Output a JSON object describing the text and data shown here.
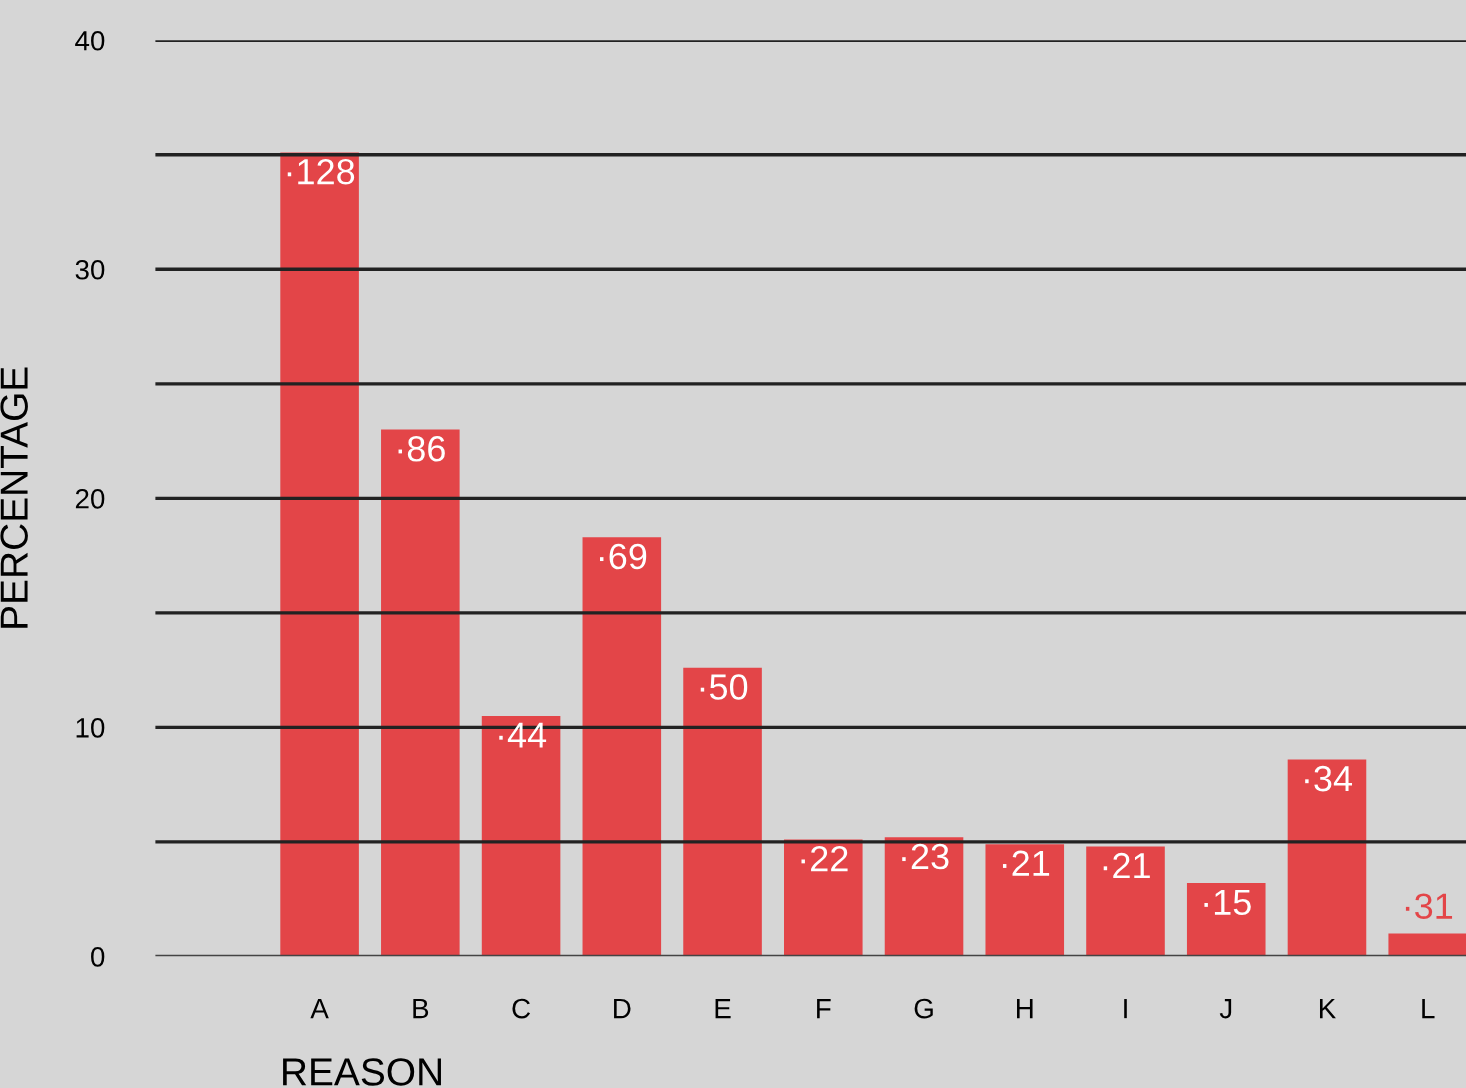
{
  "chart_data": {
    "type": "bar",
    "xlabel": "REASON",
    "ylabel": "PERCENTAGE",
    "categories": [
      "A",
      "B",
      "C",
      "D",
      "E",
      "F",
      "G",
      "H",
      "I",
      "J",
      "K",
      "L"
    ],
    "values": [
      35.1,
      23.0,
      10.5,
      18.3,
      12.6,
      5.1,
      5.2,
      4.9,
      4.8,
      3.2,
      8.6,
      1.0
    ],
    "annotations": [
      {
        "text": "·128",
        "x": "A",
        "y": 35.1
      },
      {
        "text": "·86",
        "x": "B",
        "y": 23.0
      },
      {
        "text": "·44",
        "x": "C",
        "y": 10.5
      },
      {
        "text": "·69",
        "x": "D",
        "y": 18.3
      },
      {
        "text": "·50",
        "x": "E",
        "y": 12.6
      },
      {
        "text": "·22",
        "x": "F",
        "y": 5.1
      },
      {
        "text": "·23",
        "x": "G",
        "y": 5.2
      },
      {
        "text": "·21",
        "x": "H",
        "y": 4.9
      },
      {
        "text": "·21",
        "x": "I",
        "y": 4.8
      },
      {
        "text": "·15",
        "x": "J",
        "y": 3.2
      },
      {
        "text": "·34",
        "x": "K",
        "y": 8.6
      },
      {
        "text": "·31",
        "x": "L",
        "y": 1.0
      }
    ],
    "color": "#e34548",
    "ylim": [
      0,
      40
    ],
    "yticks": [
      0,
      {
        "value": 5,
        "label": null
      },
      10,
      {
        "value": 15,
        "label": null
      },
      20,
      {
        "value": 25,
        "label": null
      },
      30,
      {
        "value": 35,
        "label": null
      },
      40
    ],
    "grid": "y"
  }
}
